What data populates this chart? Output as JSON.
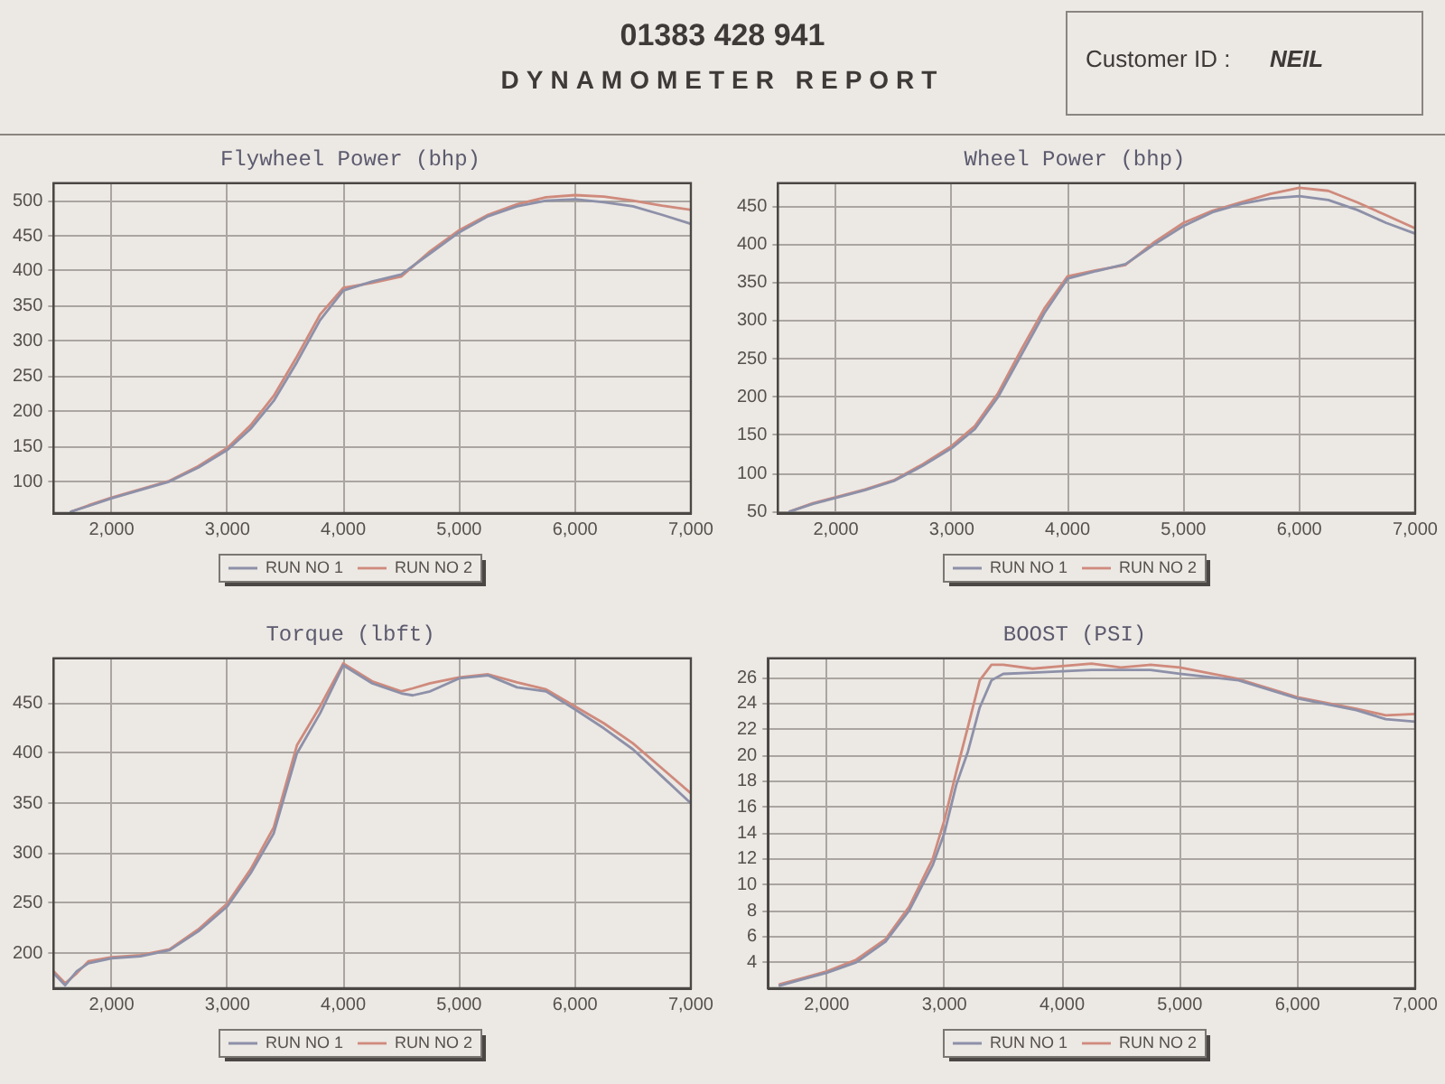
{
  "chart_data": [
    {
      "type": "line",
      "title": "Flywheel Power (bhp)",
      "annotations": [
        "01383 428 941",
        "DYNAMOMETER REPORT",
        "Customer ID :",
        "NEIL"
      ],
      "xlim": [
        1500,
        7000
      ],
      "xticks": [
        {
          "value": 2000,
          "label": "2,000"
        },
        {
          "value": 3000,
          "label": "3,000"
        },
        {
          "value": 4000,
          "label": "4,000"
        },
        {
          "value": 5000,
          "label": "5,000"
        },
        {
          "value": 6000,
          "label": "6,000"
        },
        {
          "value": 7000,
          "label": "7,000"
        }
      ],
      "ylim": [
        55,
        525
      ],
      "yticks": [
        100,
        150,
        200,
        250,
        300,
        350,
        400,
        450,
        500
      ],
      "grid": true,
      "legend": "bottom",
      "x": [
        1650,
        1800,
        2000,
        2250,
        2500,
        2750,
        3000,
        3200,
        3400,
        3600,
        3800,
        4000,
        4250,
        4500,
        4750,
        5000,
        5250,
        5500,
        5750,
        6000,
        6250,
        6500,
        6750,
        7000
      ],
      "series": [
        {
          "name": "RUN NO 1",
          "color": "#8d90a8",
          "values": [
            57,
            65,
            76,
            88,
            100,
            120,
            145,
            175,
            215,
            270,
            330,
            372,
            385,
            395,
            425,
            455,
            478,
            492,
            500,
            502,
            498,
            492,
            480,
            467
          ]
        },
        {
          "name": "RUN NO 2",
          "color": "#cf8a7c",
          "values": [
            57,
            66,
            77,
            89,
            101,
            122,
            148,
            180,
            222,
            278,
            338,
            376,
            383,
            392,
            428,
            458,
            480,
            495,
            505,
            508,
            506,
            500,
            493,
            487
          ]
        }
      ]
    },
    {
      "type": "line",
      "title": "Wheel Power (bhp)",
      "xlim": [
        1500,
        7000
      ],
      "xticks": [
        {
          "value": 2000,
          "label": "2,000"
        },
        {
          "value": 3000,
          "label": "3,000"
        },
        {
          "value": 4000,
          "label": "4,000"
        },
        {
          "value": 5000,
          "label": "5,000"
        },
        {
          "value": 6000,
          "label": "6,000"
        },
        {
          "value": 7000,
          "label": "7,000"
        }
      ],
      "ylim": [
        48,
        480
      ],
      "yticks": [
        50,
        100,
        150,
        200,
        250,
        300,
        350,
        400,
        450
      ],
      "grid": true,
      "legend": "bottom",
      "x": [
        1600,
        1800,
        2000,
        2250,
        2500,
        2750,
        3000,
        3200,
        3400,
        3600,
        3800,
        4000,
        4250,
        4500,
        4750,
        5000,
        5250,
        5500,
        5750,
        6000,
        6250,
        6500,
        6750,
        7000
      ],
      "series": [
        {
          "name": "RUN NO 1",
          "color": "#8d90a8",
          "values": [
            50,
            60,
            68,
            78,
            90,
            110,
            133,
            158,
            200,
            255,
            310,
            355,
            365,
            374,
            400,
            424,
            442,
            453,
            460,
            463,
            458,
            445,
            428,
            414
          ]
        },
        {
          "name": "RUN NO 2",
          "color": "#cf8a7c",
          "values": [
            50,
            61,
            69,
            79,
            91,
            112,
            136,
            162,
            205,
            262,
            316,
            358,
            366,
            373,
            403,
            428,
            444,
            455,
            466,
            474,
            470,
            455,
            438,
            421
          ]
        }
      ]
    },
    {
      "type": "line",
      "title": "Torque (lbft)",
      "xlim": [
        1500,
        7000
      ],
      "xticks": [
        {
          "value": 2000,
          "label": "2,000"
        },
        {
          "value": 3000,
          "label": "3,000"
        },
        {
          "value": 4000,
          "label": "4,000"
        },
        {
          "value": 5000,
          "label": "5,000"
        },
        {
          "value": 6000,
          "label": "6,000"
        },
        {
          "value": 7000,
          "label": "7,000"
        }
      ],
      "ylim": [
        165,
        495
      ],
      "yticks": [
        200,
        250,
        300,
        350,
        400,
        450
      ],
      "grid": true,
      "legend": "bottom",
      "x": [
        1500,
        1600,
        1700,
        1800,
        2000,
        2250,
        2500,
        2750,
        3000,
        3200,
        3400,
        3600,
        3800,
        4000,
        4250,
        4500,
        4600,
        4750,
        5000,
        5250,
        5500,
        5750,
        6000,
        6250,
        6500,
        6750,
        7000
      ],
      "series": [
        {
          "name": "RUN NO 1",
          "color": "#8d90a8",
          "values": [
            180,
            168,
            182,
            190,
            195,
            197,
            203,
            222,
            247,
            280,
            320,
            400,
            440,
            488,
            470,
            460,
            458,
            462,
            475,
            478,
            466,
            462,
            444,
            425,
            404,
            377,
            350
          ]
        },
        {
          "name": "RUN NO 2",
          "color": "#cf8a7c",
          "values": [
            182,
            170,
            180,
            192,
            196,
            198,
            204,
            224,
            250,
            284,
            326,
            408,
            447,
            490,
            472,
            462,
            465,
            470,
            476,
            479,
            471,
            464,
            447,
            430,
            410,
            385,
            360
          ]
        }
      ]
    },
    {
      "type": "line",
      "title": "BOOST (PSI)",
      "xlim": [
        1500,
        7000
      ],
      "xticks": [
        {
          "value": 2000,
          "label": "2,000"
        },
        {
          "value": 3000,
          "label": "3,000"
        },
        {
          "value": 4000,
          "label": "4,000"
        },
        {
          "value": 5000,
          "label": "5,000"
        },
        {
          "value": 6000,
          "label": "6,000"
        },
        {
          "value": 7000,
          "label": "7,000"
        }
      ],
      "ylim": [
        2,
        27.5
      ],
      "yticks": [
        4,
        6,
        8,
        10,
        12,
        14,
        16,
        18,
        20,
        22,
        24,
        26
      ],
      "grid": true,
      "legend": "bottom",
      "x": [
        1600,
        1800,
        2000,
        2250,
        2500,
        2700,
        2900,
        3000,
        3100,
        3200,
        3300,
        3400,
        3500,
        3750,
        4000,
        4250,
        4500,
        4750,
        5000,
        5500,
        6000,
        6500,
        6750,
        7000
      ],
      "series": [
        {
          "name": "RUN NO 1",
          "color": "#8d90a8",
          "values": [
            2.2,
            2.7,
            3.2,
            4,
            5.6,
            8,
            11.5,
            14,
            17.7,
            20.3,
            23.7,
            25.8,
            26.3,
            26.4,
            26.5,
            26.6,
            26.6,
            26.6,
            26.3,
            25.8,
            24.4,
            23.5,
            22.8,
            22.6
          ]
        },
        {
          "name": "RUN NO 2",
          "color": "#cf8a7c",
          "values": [
            2.3,
            2.8,
            3.3,
            4.2,
            5.8,
            8.3,
            12,
            15,
            18.7,
            22.2,
            25.8,
            27,
            27,
            26.7,
            26.9,
            27.1,
            26.8,
            27,
            26.8,
            25.9,
            24.5,
            23.6,
            23.1,
            23.2
          ]
        }
      ]
    }
  ]
}
